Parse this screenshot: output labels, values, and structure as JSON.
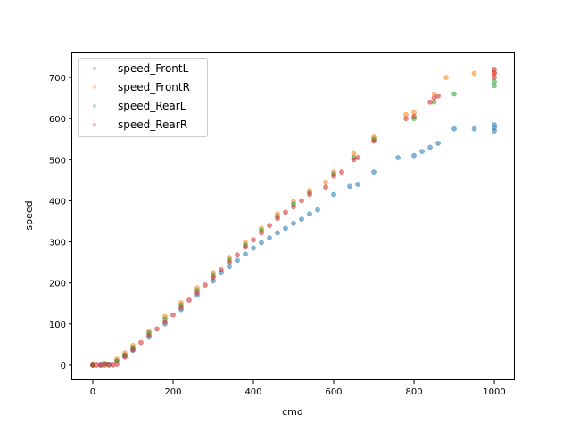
{
  "chart_data": {
    "type": "scatter",
    "title": "",
    "xlabel": "cmd",
    "ylabel": "speed",
    "xlim": [
      -51,
      1051
    ],
    "ylim": [
      -37,
      763
    ],
    "xticks": [
      0,
      200,
      400,
      600,
      800,
      1000
    ],
    "yticks": [
      0,
      100,
      200,
      300,
      400,
      500,
      600,
      700
    ],
    "grid": false,
    "legend_placement": "upper-left",
    "series": [
      {
        "name": "speed_FrontL",
        "color": "#1f77b4",
        "points": [
          [
            0,
            0
          ],
          [
            20,
            0
          ],
          [
            40,
            2
          ],
          [
            60,
            10
          ],
          [
            80,
            22
          ],
          [
            100,
            36
          ],
          [
            140,
            68
          ],
          [
            180,
            100
          ],
          [
            220,
            135
          ],
          [
            260,
            170
          ],
          [
            300,
            205
          ],
          [
            320,
            225
          ],
          [
            340,
            240
          ],
          [
            360,
            255
          ],
          [
            380,
            270
          ],
          [
            400,
            285
          ],
          [
            420,
            298
          ],
          [
            440,
            310
          ],
          [
            460,
            322
          ],
          [
            480,
            333
          ],
          [
            500,
            345
          ],
          [
            520,
            355
          ],
          [
            540,
            368
          ],
          [
            560,
            378
          ],
          [
            600,
            415
          ],
          [
            640,
            435
          ],
          [
            660,
            440
          ],
          [
            700,
            470
          ],
          [
            760,
            505
          ],
          [
            800,
            510
          ],
          [
            820,
            520
          ],
          [
            840,
            530
          ],
          [
            860,
            540
          ],
          [
            900,
            575
          ],
          [
            950,
            575
          ],
          [
            1000,
            570
          ],
          [
            1000,
            578
          ],
          [
            1000,
            585
          ]
        ]
      },
      {
        "name": "speed_FrontR",
        "color": "#ff7f0e",
        "points": [
          [
            0,
            0
          ],
          [
            30,
            5
          ],
          [
            60,
            15
          ],
          [
            80,
            30
          ],
          [
            100,
            48
          ],
          [
            140,
            82
          ],
          [
            180,
            118
          ],
          [
            220,
            152
          ],
          [
            260,
            188
          ],
          [
            300,
            225
          ],
          [
            340,
            262
          ],
          [
            380,
            298
          ],
          [
            420,
            333
          ],
          [
            460,
            368
          ],
          [
            500,
            398
          ],
          [
            540,
            425
          ],
          [
            580,
            445
          ],
          [
            600,
            470
          ],
          [
            650,
            515
          ],
          [
            700,
            555
          ],
          [
            780,
            610
          ],
          [
            800,
            615
          ],
          [
            850,
            660
          ],
          [
            880,
            700
          ],
          [
            950,
            710
          ],
          [
            1000,
            712
          ]
        ]
      },
      {
        "name": "speed_RearL",
        "color": "#2ca02c",
        "points": [
          [
            0,
            0
          ],
          [
            30,
            3
          ],
          [
            60,
            10
          ],
          [
            80,
            25
          ],
          [
            100,
            43
          ],
          [
            140,
            78
          ],
          [
            180,
            112
          ],
          [
            220,
            146
          ],
          [
            260,
            182
          ],
          [
            300,
            218
          ],
          [
            340,
            256
          ],
          [
            380,
            292
          ],
          [
            420,
            328
          ],
          [
            460,
            362
          ],
          [
            500,
            392
          ],
          [
            540,
            420
          ],
          [
            600,
            465
          ],
          [
            650,
            505
          ],
          [
            700,
            550
          ],
          [
            800,
            600
          ],
          [
            850,
            640
          ],
          [
            900,
            660
          ],
          [
            1000,
            680
          ],
          [
            1000,
            690
          ]
        ]
      },
      {
        "name": "speed_RearR",
        "color": "#d62728",
        "points": [
          [
            0,
            0
          ],
          [
            10,
            0
          ],
          [
            20,
            0
          ],
          [
            30,
            0
          ],
          [
            40,
            0
          ],
          [
            50,
            0
          ],
          [
            60,
            2
          ],
          [
            80,
            20
          ],
          [
            100,
            38
          ],
          [
            120,
            55
          ],
          [
            140,
            72
          ],
          [
            160,
            88
          ],
          [
            180,
            105
          ],
          [
            200,
            122
          ],
          [
            220,
            140
          ],
          [
            240,
            158
          ],
          [
            260,
            176
          ],
          [
            280,
            195
          ],
          [
            300,
            213
          ],
          [
            320,
            232
          ],
          [
            340,
            250
          ],
          [
            360,
            268
          ],
          [
            380,
            287
          ],
          [
            400,
            305
          ],
          [
            420,
            322
          ],
          [
            440,
            340
          ],
          [
            460,
            357
          ],
          [
            480,
            372
          ],
          [
            500,
            385
          ],
          [
            520,
            400
          ],
          [
            540,
            415
          ],
          [
            580,
            433
          ],
          [
            600,
            460
          ],
          [
            620,
            470
          ],
          [
            650,
            500
          ],
          [
            660,
            505
          ],
          [
            700,
            545
          ],
          [
            780,
            600
          ],
          [
            800,
            605
          ],
          [
            840,
            640
          ],
          [
            850,
            650
          ],
          [
            860,
            655
          ],
          [
            1000,
            700
          ],
          [
            1000,
            710
          ],
          [
            1000,
            720
          ]
        ]
      }
    ]
  }
}
